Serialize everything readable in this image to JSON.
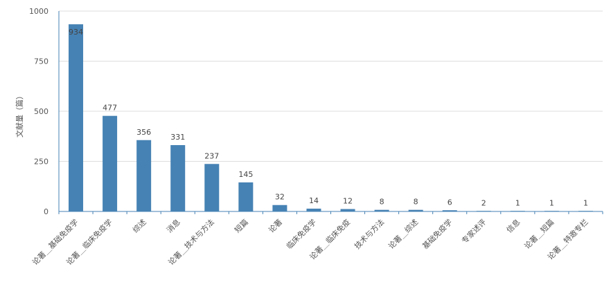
{
  "chart_data": {
    "type": "bar",
    "ylabel": "文献量（篇）",
    "xlabel": "",
    "title": "",
    "ylim": [
      0,
      1000
    ],
    "yticks": [
      0,
      250,
      500,
      750,
      1000
    ],
    "grid": true,
    "bar_color": "#4682b4",
    "grid_color": "#dddddd",
    "axis_color": "#4682b4",
    "categories": [
      "论著＿基础免疫学",
      "论著＿临床免疫学",
      "综述",
      "消息",
      "论著＿技术与方法",
      "短篇",
      "论著",
      "临床免疫学",
      "论著＿临床免疫",
      "技术与方法",
      "论著＿综述",
      "基础免疫学",
      "专家述评",
      "信息",
      "论著＿短篇",
      "论著＿特邀专栏"
    ],
    "values": [
      934,
      477,
      356,
      331,
      237,
      145,
      32,
      14,
      12,
      8,
      8,
      6,
      2,
      1,
      1,
      1
    ]
  }
}
